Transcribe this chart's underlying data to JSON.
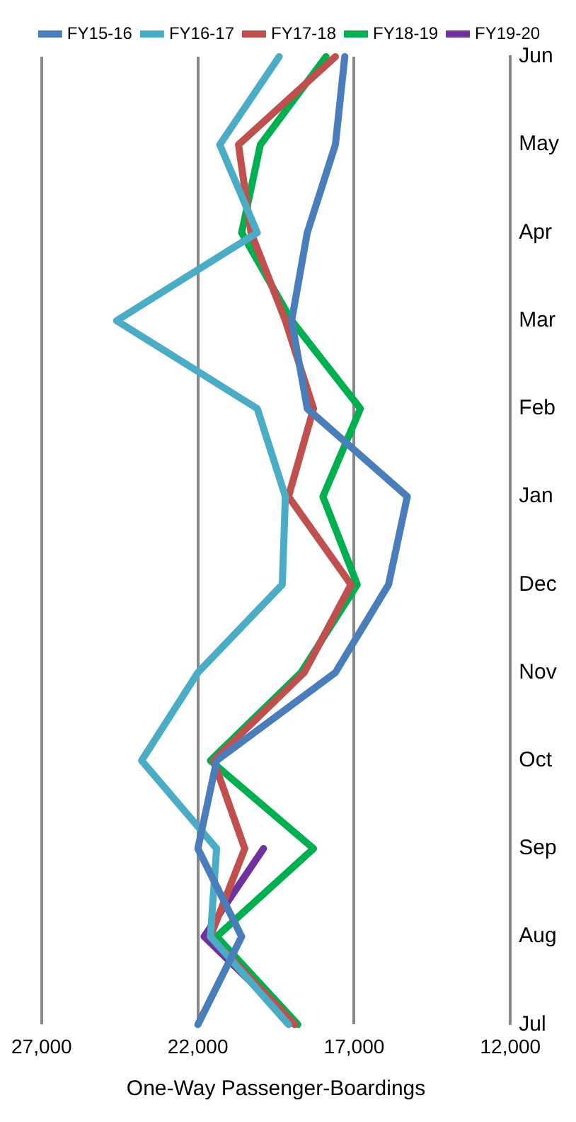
{
  "chart_data": {
    "type": "line",
    "orientation": "horizontal",
    "xlabel": "One-Way Passenger-Boardings",
    "categories": [
      "Jun",
      "May",
      "Apr",
      "Mar",
      "Feb",
      "Jan",
      "Dec",
      "Nov",
      "Oct",
      "Sep",
      "Aug",
      "Jul"
    ],
    "xlim": [
      27000,
      12000
    ],
    "xticks": [
      {
        "value": 27000,
        "label": "27,000"
      },
      {
        "value": 22000,
        "label": "22,000"
      },
      {
        "value": 17000,
        "label": "17,000"
      },
      {
        "value": 12000,
        "label": "12,000"
      }
    ],
    "grid": "x",
    "legend": "top",
    "marker": "none",
    "line_style": "solid",
    "series": [
      {
        "name": "FY15-16",
        "color": "#4a7ebb",
        "values": [
          17300,
          17600,
          18500,
          19000,
          18500,
          15300,
          15900,
          17600,
          21400,
          22000,
          20600,
          22000
        ]
      },
      {
        "name": "FY16-17",
        "color": "#4bacc6",
        "values": [
          19400,
          21300,
          20100,
          24600,
          20100,
          19200,
          19300,
          22000,
          23800,
          21400,
          21600,
          19100
        ]
      },
      {
        "name": "FY17-18",
        "color": "#c0504d",
        "values": [
          17600,
          20700,
          20300,
          19200,
          18300,
          19100,
          17100,
          18600,
          21500,
          20500,
          21600,
          18900
        ]
      },
      {
        "name": "FY18-19",
        "color": "#00b050",
        "values": [
          17900,
          20000,
          20600,
          19000,
          16800,
          18000,
          16900,
          18700,
          21600,
          18300,
          21400,
          18800
        ]
      },
      {
        "name": "FY19-20",
        "color": "#7030a0",
        "values": [
          null,
          null,
          null,
          null,
          null,
          null,
          null,
          null,
          null,
          19900,
          21800,
          18900
        ]
      }
    ]
  }
}
